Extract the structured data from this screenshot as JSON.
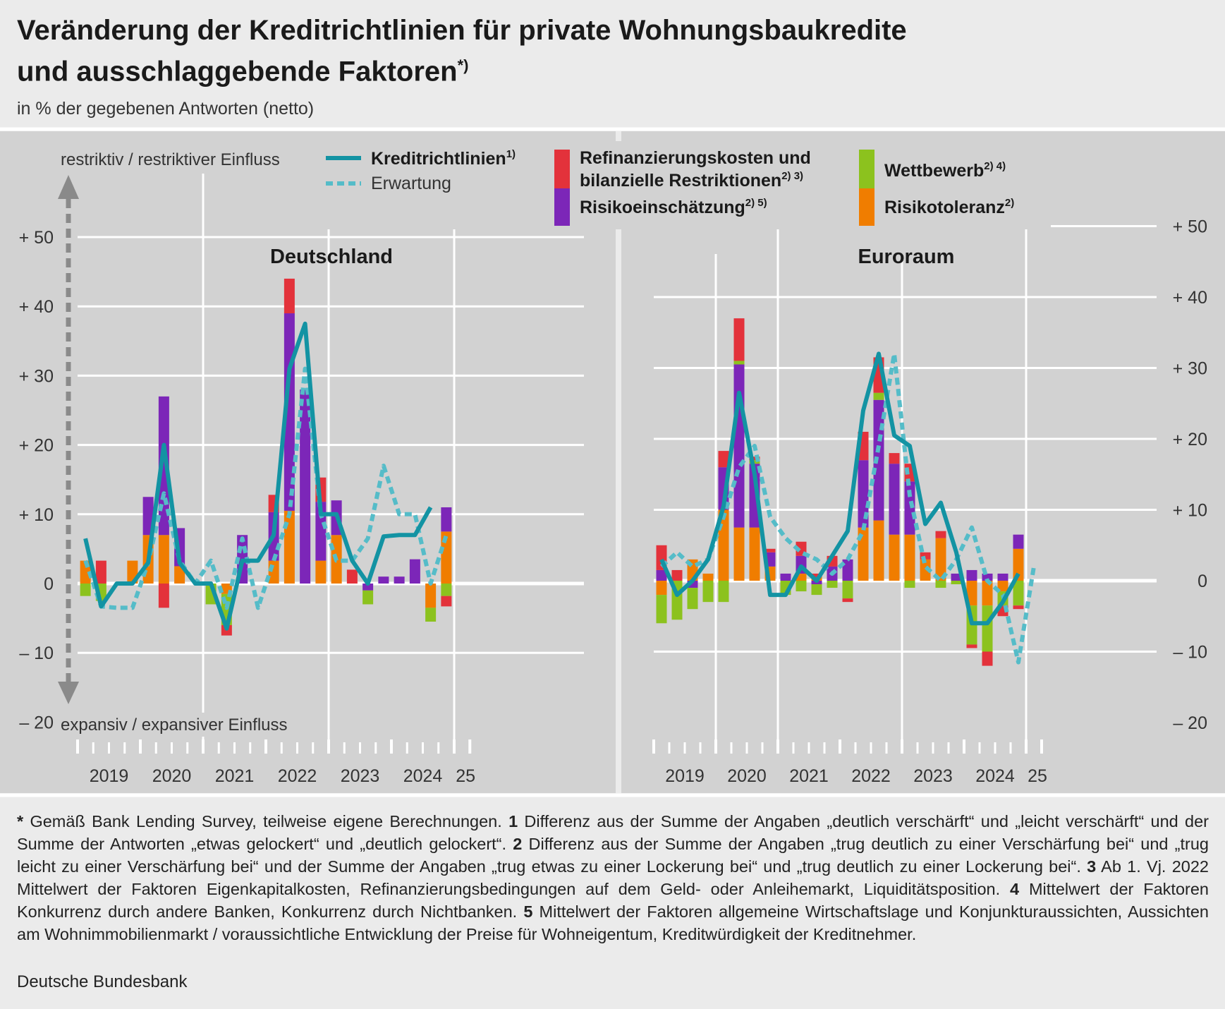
{
  "header": {
    "title_line1": "Veränderung der Kreditrichtlinien für private Wohnungsbaukredite",
    "title_line2": "und ausschlaggebende Faktoren",
    "title_marker": "*)",
    "subtitle": "in % der gegebenen Antworten (netto)"
  },
  "annotations": {
    "top": "restriktiv / restriktiver Einfluss",
    "bottom": "expansiv / expansiver Einfluss"
  },
  "legend": {
    "line": "Kreditrichtlinien",
    "line_sup": "1)",
    "expect": "Erwartung",
    "refi_1": "Refinanzierungskosten und",
    "refi_2": "bilanzielle Restriktionen",
    "refi_sup": "2) 3)",
    "risk": "Risikoeinschätzung",
    "risk_sup": "2) 5)",
    "comp": "Wettbewerb",
    "comp_sup": "2) 4)",
    "tol": "Risikotoleranz",
    "tol_sup": "2)"
  },
  "colors": {
    "line": "#1393a3",
    "expect": "#55bcc8",
    "refi": "#e3323b",
    "risk": "#7c26b8",
    "comp": "#8cc21e",
    "tol": "#f07d00",
    "panel": "#d2d2d2",
    "grid": "#ffffff"
  },
  "chart_data": [
    {
      "type": "bar",
      "title": "Deutschland",
      "ylabel": "in % der gegebenen Antworten (netto)",
      "ylim": [
        -20,
        50
      ],
      "yticks": [
        "+ 50",
        "+ 40",
        "+ 30",
        "+ 20",
        "+ 10",
        "0",
        "– 10",
        "– 20"
      ],
      "year_labels": [
        "2019",
        "2020",
        "2021",
        "2022",
        "2023",
        "2024",
        "25"
      ],
      "quarters": [
        "2019 Q1",
        "2019 Q2",
        "2019 Q3",
        "2019 Q4",
        "2020 Q1",
        "2020 Q2",
        "2020 Q3",
        "2020 Q4",
        "2021 Q1",
        "2021 Q2",
        "2021 Q3",
        "2021 Q4",
        "2022 Q1",
        "2022 Q2",
        "2022 Q3",
        "2022 Q4",
        "2023 Q1",
        "2023 Q2",
        "2023 Q3",
        "2023 Q4",
        "2024 Q1",
        "2024 Q2",
        "2024 Q3",
        "2024 Q4",
        "2025 Q1"
      ],
      "series": [
        {
          "name": "Risikotoleranz",
          "values": [
            3.3,
            0,
            0,
            3.3,
            7,
            7,
            2.5,
            0,
            0,
            -1.5,
            0,
            0,
            3.3,
            10.5,
            0,
            3.3,
            7,
            0,
            0,
            0,
            0,
            0,
            -3.5,
            7.5,
            null
          ]
        },
        {
          "name": "Risikoeinschätzung",
          "values": [
            0,
            0,
            0,
            0,
            5.5,
            20,
            5.5,
            0,
            0,
            0,
            7,
            0,
            7,
            28.5,
            28,
            8.5,
            5,
            0,
            -1,
            1,
            1,
            3.5,
            0,
            3.5,
            null
          ]
        },
        {
          "name": "Wettbewerb",
          "values": [
            -1.8,
            -2.5,
            0,
            0,
            0,
            0,
            0,
            0,
            -3,
            -4.5,
            0,
            0,
            0,
            0,
            0,
            0,
            0,
            0,
            -2,
            0,
            0,
            0,
            -2,
            -1.8,
            null
          ]
        },
        {
          "name": "Refinanzierungskosten und bilanzielle Restriktionen",
          "values": [
            0,
            3.3,
            0,
            0,
            0,
            -3.5,
            0,
            0,
            0,
            -1.5,
            0,
            0,
            2.5,
            5,
            0,
            3.5,
            0,
            2,
            0,
            0,
            0,
            0,
            0,
            -1.5,
            null
          ]
        }
      ],
      "kreditrichtlinien": [
        6.5,
        -3.3,
        0,
        0,
        3,
        20,
        3,
        0,
        0,
        -6.5,
        3.3,
        3.3,
        7,
        31,
        37.5,
        10,
        10,
        3.3,
        0,
        6.8,
        7,
        7,
        11,
        null,
        null
      ],
      "erwartung": [
        3.3,
        -3.3,
        -3.5,
        -3.5,
        3,
        13,
        3.3,
        0,
        3.3,
        -3.5,
        6.5,
        -3.5,
        3.3,
        10,
        31,
        10,
        3.3,
        3.3,
        6.5,
        17,
        10,
        10,
        0,
        7,
        null
      ]
    },
    {
      "type": "bar",
      "title": "Euroraum",
      "ylim": [
        -20,
        50
      ],
      "yticks": [
        "+ 50",
        "+ 40",
        "+ 30",
        "+ 20",
        "+ 10",
        "0",
        "– 10",
        "– 20"
      ],
      "year_labels": [
        "2019",
        "2020",
        "2021",
        "2022",
        "2023",
        "2024",
        "25"
      ],
      "quarters": [
        "2019 Q1",
        "2019 Q2",
        "2019 Q3",
        "2019 Q4",
        "2020 Q1",
        "2020 Q2",
        "2020 Q3",
        "2020 Q4",
        "2021 Q1",
        "2021 Q2",
        "2021 Q3",
        "2021 Q4",
        "2022 Q1",
        "2022 Q2",
        "2022 Q3",
        "2022 Q4",
        "2023 Q1",
        "2023 Q2",
        "2023 Q3",
        "2023 Q4",
        "2024 Q1",
        "2024 Q2",
        "2024 Q3",
        "2024 Q4",
        "2025 Q1"
      ],
      "series": [
        {
          "name": "Risikotoleranz",
          "values": [
            -2,
            0,
            3,
            1,
            10,
            7.5,
            7.5,
            2,
            0,
            1,
            0.5,
            0,
            0,
            7.5,
            8.5,
            6.5,
            6.5,
            3,
            6,
            0,
            -3.5,
            -3.5,
            -1.5,
            4.5,
            null
          ]
        },
        {
          "name": "Risikoeinschätzung",
          "values": [
            1.5,
            0,
            -1,
            0,
            6,
            23,
            9,
            2,
            1,
            2.5,
            -0.5,
            2,
            3,
            9.5,
            17,
            10,
            7.5,
            0,
            0,
            1,
            1.5,
            1,
            1,
            2,
            null
          ]
        },
        {
          "name": "Wettbewerb",
          "values": [
            -4,
            -5.5,
            -3,
            -3,
            -3,
            0.5,
            0.5,
            0,
            -2,
            -1.5,
            -1.5,
            -1,
            -2.5,
            0,
            1,
            0,
            -1,
            0,
            -1,
            -0.5,
            -5.5,
            -6.5,
            -2,
            -3.5,
            null
          ]
        },
        {
          "name": "Refinanzierungskosten und bilanzielle Restriktionen",
          "values": [
            3.5,
            1.5,
            0,
            0,
            2.3,
            6,
            0.5,
            0.5,
            0,
            2,
            0.5,
            1.5,
            -0.5,
            4,
            5,
            1.5,
            2.5,
            1,
            1,
            0,
            -0.5,
            -2,
            -1.5,
            -0.5,
            null
          ]
        }
      ],
      "kreditrichtlinien": [
        3,
        -2,
        0,
        3,
        10.5,
        26.5,
        15,
        -2,
        -2,
        2,
        0,
        3.5,
        7,
        24,
        32,
        20.5,
        19,
        8,
        11,
        4,
        -6,
        -6,
        -3,
        1,
        null
      ],
      "erwartung": [
        2,
        4,
        2,
        3,
        9,
        16,
        19,
        9,
        6,
        4,
        3,
        1,
        3,
        7,
        19,
        32,
        12,
        2,
        0,
        3,
        7.5,
        0,
        -2,
        -11.5,
        2
      ]
    }
  ],
  "footnote": {
    "star": "*",
    "star_text": " Gemäß Bank Lending Survey, teilweise eigene Berechnungen. ",
    "n1": "1",
    "n1_text": " Differenz aus der Summe der Angaben „deutlich verschärft“ und „leicht verschärft“ und der Summe der Antworten „etwas gelockert“ und „deutlich gelockert“. ",
    "n2": "2",
    "n2_text": " Differenz aus der Summe der Angaben „trug deutlich zu einer Verschärfung bei“ und „trug leicht zu einer Verschärfung bei“ und der Summe der Angaben „trug etwas zu einer Lockerung bei“ und „trug deutlich zu einer Lockerung bei“. ",
    "n3": "3",
    "n3_text": " Ab 1. Vj. 2022 Mittelwert der Faktoren Eigenkapitalkosten, Refinanzierungsbedingungen auf dem Geld- oder Anleihemarkt, Liquiditätsposition. ",
    "n4": "4",
    "n4_text": " Mittelwert der Faktoren Konkurrenz durch andere Banken, Konkurrenz durch Nichtbanken. ",
    "n5": "5",
    "n5_text": " Mittelwert der Faktoren allgemeine Wirtschaftslage und Konjunkturaussichten, Aussichten am Wohnimmobilienmarkt / voraussichtliche Entwicklung der Preise für Wohneigentum, Kreditwürdigkeit der Kreditnehmer."
  },
  "source": "Deutsche Bundesbank"
}
